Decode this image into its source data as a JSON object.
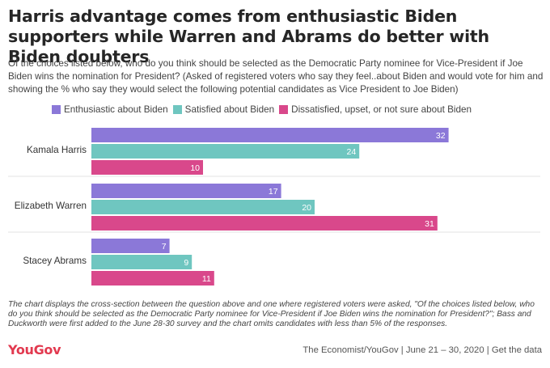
{
  "header": {
    "title": "Harris advantage comes from enthusiastic Biden supporters while Warren and Abrams do better with Biden doubters",
    "subtitle": "Of the choices listed below, who do you think should be selected as the Democratic Party nominee for Vice-President if Joe Biden wins the nomination for President? (Asked of registered voters who say they feel..about Biden and would vote for him and showing the % who say they would select the following potential candidates as Vice President to Joe Biden)"
  },
  "colors": {
    "enthusiastic": "#8b78d8",
    "satisfied": "#6fc6c0",
    "dissatisfied": "#d9488b"
  },
  "chart_data": {
    "type": "bar",
    "orientation": "horizontal",
    "categories": [
      "Kamala Harris",
      "Elizabeth Warren",
      "Stacey Abrams"
    ],
    "series": [
      {
        "name": "Enthusiastic about Biden",
        "values": [
          32,
          17,
          7
        ]
      },
      {
        "name": "Satisfied about Biden",
        "values": [
          24,
          20,
          9
        ]
      },
      {
        "name": "Dissatisfied, upset, or not sure about Biden",
        "values": [
          10,
          31,
          11
        ]
      }
    ],
    "xlim": [
      0,
      40
    ],
    "legend": "top"
  },
  "footer": {
    "note": "The chart displays the cross-section between the question above and one where registered voters were asked, \"Of the choices listed below, who do you think should be selected as the Democratic Party nominee for Vice-President if Joe Biden wins the nomination for President?\"; Bass and Duckworth were first added to the June 28-30 survey and the chart omits candidates with less than 5% of the responses.",
    "logo": "YouGov",
    "source": "The Economist/YouGov | June 21 – 30, 2020 | Get the data"
  }
}
